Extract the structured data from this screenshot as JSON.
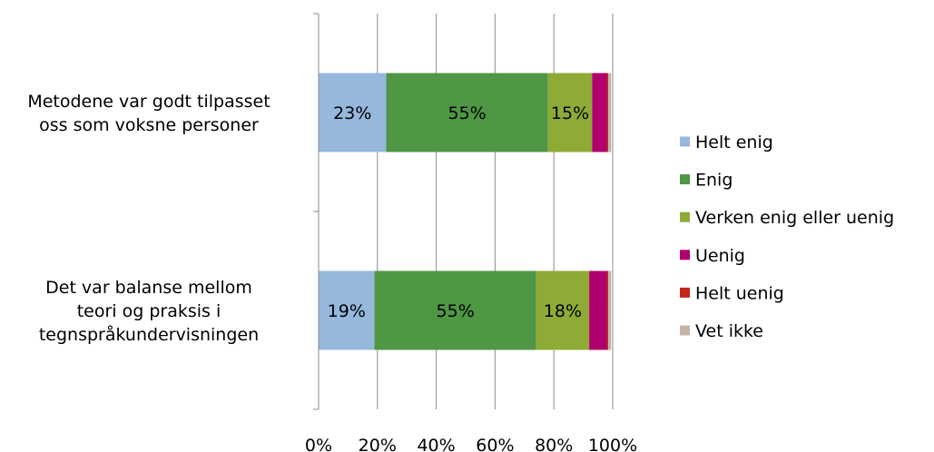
{
  "chart_data": {
    "type": "bar",
    "orientation": "horizontal",
    "stacked": true,
    "percent_stacked": true,
    "categories": [
      [
        "Metodene var godt tilpasset",
        "oss som voksne personer"
      ],
      [
        "Det var balanse mellom",
        "teori og praksis i",
        "tegnspråkundervisningen"
      ]
    ],
    "series": [
      {
        "name": "Helt enig",
        "color": "#95b8dc",
        "values": [
          23,
          19
        ],
        "labels": [
          "23%",
          "19%"
        ]
      },
      {
        "name": "Enig",
        "color": "#4f9645",
        "values": [
          55,
          55
        ],
        "labels": [
          "55%",
          "55%"
        ]
      },
      {
        "name": "Verken enig eller uenig",
        "color": "#8eab35",
        "values": [
          15,
          18
        ],
        "labels": [
          "15%",
          "18%"
        ]
      },
      {
        "name": "Uenig",
        "color": "#b0006f",
        "values": [
          5,
          6
        ],
        "labels": [
          "",
          ""
        ]
      },
      {
        "name": "Helt uenig",
        "color": "#c0281c",
        "values": [
          0.5,
          0.5
        ],
        "labels": [
          "",
          ""
        ]
      },
      {
        "name": "Vet ikke",
        "color": "#c4b4a8",
        "values": [
          1,
          1
        ],
        "labels": [
          "",
          ""
        ]
      }
    ],
    "xlim": [
      0,
      100
    ],
    "xticks": [
      "0%",
      "20%",
      "40%",
      "60%",
      "80%",
      "100%"
    ],
    "grid": true,
    "legend_position": "right"
  }
}
